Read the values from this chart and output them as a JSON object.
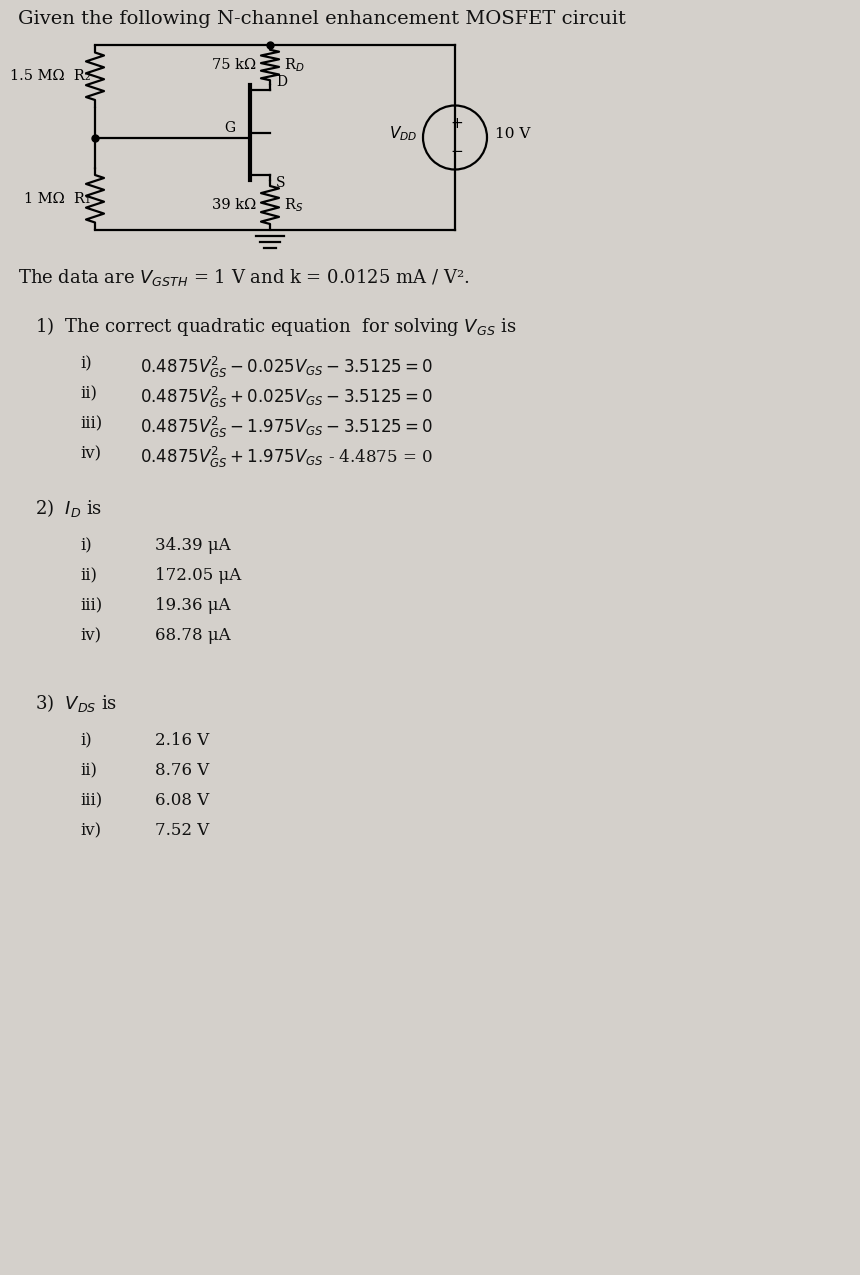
{
  "title": "Given the following N-channel enhancement MOSFET circuit",
  "background_color": "#d4d0cb",
  "text_color": "#111111",
  "circuit": {
    "R2_label": "1.5 MΩ",
    "R2_name": "R₂",
    "R1_label": "1 MΩ",
    "R1_name": "R₁",
    "RD_label": "75 kΩ",
    "RD_name": "R_D",
    "RS_label": "39 kΩ",
    "RS_name": "R_S",
    "VDD_label": "V_DD",
    "V_label": "10 V",
    "G_label": "G",
    "D_label": "D",
    "S_label": "S"
  },
  "data_line_parts": [
    "The data are V",
    "GSTH",
    " = 1 V and k = 0.0125 mA / V²."
  ],
  "q1_header_parts": [
    "1)  The correct quadratic equation  for solving V",
    "GS",
    " is"
  ],
  "q1_labels": [
    "i)",
    "ii)",
    "iii)",
    "iv)"
  ],
  "q1_eqs": [
    "0.4875V²GS – 0.025VGS – 3.5125 = 0",
    "0.4875V²GS + 0.025VGS – 3.5125 = 0",
    "0.4875V²GS – 1.975VGS – 3.5125 = 0",
    "0.4875V²GS + 1.975VGS - 4.4875 = 0"
  ],
  "q2_header": "2)  I_D is",
  "q2_labels": [
    "i)",
    "ii)",
    "iii)",
    "iv)"
  ],
  "q2_vals": [
    "34.39 μA",
    "172.05 μA",
    "19.36 μA",
    "68.78 μA"
  ],
  "q3_header": "3)  V_DS is",
  "q3_labels": [
    "i)",
    "ii)",
    "iii)",
    "iv)"
  ],
  "q3_vals": [
    "2.16 V",
    "8.76 V",
    "6.08 V",
    "7.52 V"
  ]
}
